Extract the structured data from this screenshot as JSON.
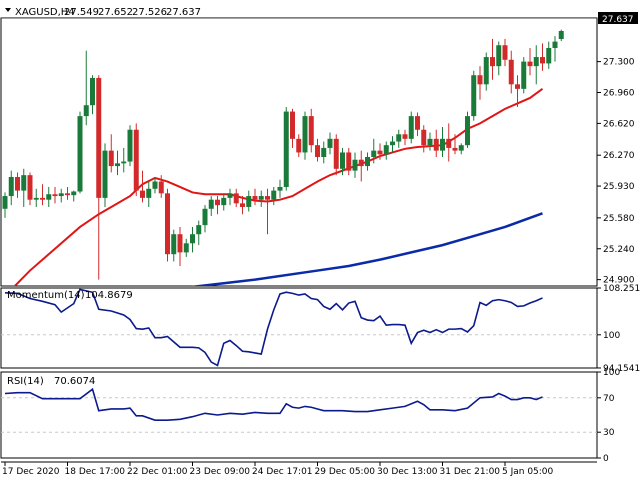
{
  "header": {
    "symbol": "XAGUSD,H4",
    "open": "27.549",
    "high": "27.652",
    "low": "27.526",
    "close": "27.637",
    "current_price_label": "27.637"
  },
  "colors": {
    "bull": "#1a7a3a",
    "bear": "#d22a2a",
    "ma_fast": "#e01515",
    "ma_slow": "#0b2aa8",
    "indicator_line": "#0b1a8c",
    "grid": "#c8c8c8",
    "axis": "#000000",
    "label_box": "#000000"
  },
  "chart_data": [
    {
      "type": "candlestick",
      "title": "XAGUSD,H4",
      "ylim": [
        24.83,
        27.78
      ],
      "y_ticks": [
        "27.637",
        "27.300",
        "26.960",
        "26.620",
        "26.270",
        "25.930",
        "25.580",
        "25.240",
        "24.900"
      ],
      "y_tick_values": [
        27.637,
        27.3,
        26.96,
        26.62,
        26.27,
        25.93,
        25.58,
        25.24,
        24.9
      ],
      "x_tick_labels": [
        "17 Dec 2020",
        "18 Dec 17:00",
        "22 Dec 01:00",
        "23 Dec 09:00",
        "24 Dec 17:01",
        "29 Dec 05:00",
        "30 Dec 13:00",
        "31 Dec 21:00",
        "5 Jan 05:00"
      ],
      "x_tick_bar_index": [
        0,
        10,
        20,
        30,
        40,
        50,
        60,
        70,
        80
      ],
      "candles": [
        [
          25.68,
          25.86,
          25.58,
          25.82
        ],
        [
          25.82,
          26.1,
          25.72,
          26.03
        ],
        [
          26.03,
          26.08,
          25.8,
          25.88
        ],
        [
          25.88,
          26.12,
          25.7,
          26.05
        ],
        [
          26.05,
          26.08,
          25.72,
          25.78
        ],
        [
          25.78,
          25.9,
          25.7,
          25.8
        ],
        [
          25.8,
          25.95,
          25.72,
          25.78
        ],
        [
          25.78,
          25.92,
          25.7,
          25.84
        ],
        [
          25.84,
          25.92,
          25.74,
          25.82
        ],
        [
          25.82,
          25.9,
          25.75,
          25.85
        ],
        [
          25.85,
          25.92,
          25.78,
          25.83
        ],
        [
          25.83,
          25.88,
          25.76,
          25.87
        ],
        [
          25.87,
          26.75,
          25.85,
          26.7
        ],
        [
          26.7,
          27.42,
          26.6,
          26.82
        ],
        [
          26.82,
          27.15,
          26.72,
          27.12
        ],
        [
          27.12,
          27.15,
          24.9,
          25.8
        ],
        [
          25.8,
          26.4,
          25.7,
          26.32
        ],
        [
          26.32,
          26.5,
          26.08,
          26.15
        ],
        [
          26.15,
          26.32,
          26.05,
          26.18
        ],
        [
          26.18,
          26.35,
          26.08,
          26.2
        ],
        [
          26.2,
          26.6,
          26.15,
          26.55
        ],
        [
          26.55,
          26.62,
          25.82,
          25.88
        ],
        [
          25.88,
          26.1,
          25.75,
          25.8
        ],
        [
          25.8,
          25.98,
          25.7,
          25.9
        ],
        [
          25.9,
          26.02,
          25.85,
          25.98
        ],
        [
          25.98,
          26.05,
          25.8,
          25.85
        ],
        [
          25.85,
          25.9,
          25.1,
          25.18
        ],
        [
          25.18,
          25.45,
          25.1,
          25.4
        ],
        [
          25.4,
          25.48,
          25.05,
          25.2
        ],
        [
          25.2,
          25.35,
          25.15,
          25.3
        ],
        [
          25.3,
          25.48,
          25.2,
          25.4
        ],
        [
          25.4,
          25.55,
          25.28,
          25.5
        ],
        [
          25.5,
          25.72,
          25.42,
          25.68
        ],
        [
          25.68,
          25.82,
          25.6,
          25.78
        ],
        [
          25.78,
          25.82,
          25.62,
          25.72
        ],
        [
          25.72,
          25.85,
          25.66,
          25.8
        ],
        [
          25.8,
          25.9,
          25.72,
          25.85
        ],
        [
          25.85,
          25.9,
          25.7,
          25.74
        ],
        [
          25.74,
          25.82,
          25.62,
          25.7
        ],
        [
          25.7,
          25.88,
          25.65,
          25.82
        ],
        [
          25.82,
          25.9,
          25.72,
          25.78
        ],
        [
          25.78,
          25.88,
          25.7,
          25.82
        ],
        [
          25.82,
          25.9,
          25.4,
          25.78
        ],
        [
          25.78,
          25.92,
          25.72,
          25.88
        ],
        [
          25.88,
          26.0,
          25.8,
          25.92
        ],
        [
          25.92,
          26.8,
          25.88,
          26.75
        ],
        [
          26.75,
          26.78,
          26.35,
          26.45
        ],
        [
          26.45,
          26.5,
          26.25,
          26.3
        ],
        [
          26.3,
          26.75,
          26.22,
          26.7
        ],
        [
          26.7,
          26.78,
          26.3,
          26.38
        ],
        [
          26.38,
          26.45,
          26.2,
          26.25
        ],
        [
          26.25,
          26.42,
          26.18,
          26.35
        ],
        [
          26.35,
          26.52,
          26.28,
          26.45
        ],
        [
          26.45,
          26.5,
          26.05,
          26.12
        ],
        [
          26.12,
          26.35,
          26.05,
          26.3
        ],
        [
          26.3,
          26.35,
          26.05,
          26.1
        ],
        [
          26.1,
          26.3,
          26.02,
          26.22
        ],
        [
          26.22,
          26.32,
          25.98,
          26.15
        ],
        [
          26.15,
          26.3,
          26.1,
          26.25
        ],
        [
          26.25,
          26.45,
          26.18,
          26.32
        ],
        [
          26.32,
          26.4,
          26.22,
          26.28
        ],
        [
          26.28,
          26.42,
          26.22,
          26.38
        ],
        [
          26.38,
          26.48,
          26.3,
          26.42
        ],
        [
          26.42,
          26.55,
          26.35,
          26.5
        ],
        [
          26.5,
          26.55,
          26.38,
          26.45
        ],
        [
          26.45,
          26.75,
          26.4,
          26.7
        ],
        [
          26.7,
          26.74,
          26.48,
          26.55
        ],
        [
          26.55,
          26.6,
          26.3,
          26.38
        ],
        [
          26.38,
          26.52,
          26.32,
          26.45
        ],
        [
          26.45,
          26.55,
          26.25,
          26.32
        ],
        [
          26.32,
          26.58,
          26.25,
          26.45
        ],
        [
          26.45,
          26.62,
          26.2,
          26.35
        ],
        [
          26.35,
          26.5,
          26.28,
          26.32
        ],
        [
          26.32,
          26.4,
          26.28,
          26.38
        ],
        [
          26.38,
          26.75,
          26.35,
          26.7
        ],
        [
          26.7,
          27.2,
          26.65,
          27.15
        ],
        [
          27.15,
          27.25,
          26.88,
          27.05
        ],
        [
          27.05,
          27.4,
          26.98,
          27.35
        ],
        [
          27.35,
          27.55,
          27.1,
          27.25
        ],
        [
          27.25,
          27.52,
          27.15,
          27.48
        ],
        [
          27.48,
          27.55,
          27.25,
          27.32
        ],
        [
          27.32,
          27.42,
          26.95,
          27.05
        ],
        [
          27.05,
          27.15,
          26.8,
          27.0
        ],
        [
          27.0,
          27.35,
          26.95,
          27.3
        ],
        [
          27.3,
          27.45,
          27.15,
          27.25
        ],
        [
          27.25,
          27.48,
          27.05,
          27.35
        ],
        [
          27.35,
          27.5,
          27.2,
          27.28
        ],
        [
          27.28,
          27.52,
          27.22,
          27.45
        ],
        [
          27.45,
          27.58,
          27.3,
          27.52
        ],
        [
          27.549,
          27.652,
          27.526,
          27.637
        ]
      ],
      "ma_fast": [
        [
          0,
          24.72
        ],
        [
          4,
          25.0
        ],
        [
          8,
          25.24
        ],
        [
          12,
          25.48
        ],
        [
          15,
          25.62
        ],
        [
          18,
          25.74
        ],
        [
          20,
          25.82
        ],
        [
          22,
          25.95
        ],
        [
          24,
          26.02
        ],
        [
          26,
          25.98
        ],
        [
          28,
          25.92
        ],
        [
          30,
          25.86
        ],
        [
          32,
          25.84
        ],
        [
          34,
          25.84
        ],
        [
          36,
          25.84
        ],
        [
          38,
          25.8
        ],
        [
          40,
          25.77
        ],
        [
          42,
          25.76
        ],
        [
          44,
          25.78
        ],
        [
          46,
          25.82
        ],
        [
          48,
          25.9
        ],
        [
          50,
          25.98
        ],
        [
          52,
          26.05
        ],
        [
          54,
          26.1
        ],
        [
          56,
          26.15
        ],
        [
          58,
          26.2
        ],
        [
          60,
          26.26
        ],
        [
          62,
          26.3
        ],
        [
          64,
          26.34
        ],
        [
          66,
          26.36
        ],
        [
          68,
          26.37
        ],
        [
          70,
          26.38
        ],
        [
          72,
          26.46
        ],
        [
          74,
          26.56
        ],
        [
          76,
          26.62
        ],
        [
          78,
          26.7
        ],
        [
          80,
          26.78
        ],
        [
          82,
          26.84
        ],
        [
          84,
          26.9
        ],
        [
          86,
          27.0
        ]
      ],
      "ma_slow": [
        [
          30,
          24.82
        ],
        [
          40,
          24.9
        ],
        [
          50,
          25.0
        ],
        [
          55,
          25.05
        ],
        [
          60,
          25.12
        ],
        [
          65,
          25.2
        ],
        [
          70,
          25.28
        ],
        [
          75,
          25.38
        ],
        [
          80,
          25.48
        ],
        [
          86,
          25.63
        ]
      ]
    },
    {
      "type": "line",
      "title": "Momentum(14) 104.8679",
      "label_name": "Momentum(14)",
      "label_value": "104.8679",
      "ylim": [
        94.15,
        108.25
      ],
      "y_ticks": [
        "108.251",
        "100",
        "94.1541"
      ],
      "y_tick_values": [
        108.251,
        100,
        94.1541
      ],
      "level_lines": [
        100
      ],
      "values": [
        [
          0,
          107.4
        ],
        [
          2,
          107.3
        ],
        [
          4,
          106.4
        ],
        [
          6,
          105.9
        ],
        [
          8,
          105.3
        ],
        [
          9,
          104.0
        ],
        [
          11,
          105.5
        ],
        [
          12,
          108.0
        ],
        [
          14,
          107.5
        ],
        [
          15,
          104.5
        ],
        [
          17,
          104.2
        ],
        [
          19,
          103.5
        ],
        [
          20,
          102.7
        ],
        [
          21,
          101.1
        ],
        [
          22,
          101.0
        ],
        [
          23,
          101.2
        ],
        [
          24,
          99.5
        ],
        [
          25,
          99.5
        ],
        [
          26,
          99.7
        ],
        [
          28,
          97.8
        ],
        [
          30,
          97.8
        ],
        [
          31,
          97.7
        ],
        [
          32,
          96.9
        ],
        [
          33,
          95.2
        ],
        [
          34,
          94.6
        ],
        [
          35,
          98.5
        ],
        [
          36,
          99.0
        ],
        [
          37,
          98.1
        ],
        [
          38,
          97.1
        ],
        [
          39,
          97.0
        ],
        [
          40,
          96.8
        ],
        [
          41,
          96.6
        ],
        [
          42,
          101.0
        ],
        [
          43,
          104.4
        ],
        [
          44,
          107.2
        ],
        [
          45,
          107.5
        ],
        [
          46,
          107.3
        ],
        [
          47,
          107.0
        ],
        [
          48,
          107.2
        ],
        [
          49,
          106.4
        ],
        [
          50,
          106.2
        ],
        [
          51,
          105.0
        ],
        [
          52,
          104.5
        ],
        [
          53,
          105.5
        ],
        [
          54,
          104.4
        ],
        [
          55,
          105.6
        ],
        [
          56,
          105.9
        ],
        [
          57,
          103.0
        ],
        [
          58,
          102.6
        ],
        [
          59,
          102.5
        ],
        [
          60,
          103.3
        ],
        [
          61,
          101.7
        ],
        [
          62,
          101.8
        ],
        [
          63,
          101.8
        ],
        [
          64,
          101.7
        ],
        [
          65,
          98.5
        ],
        [
          66,
          100.4
        ],
        [
          67,
          100.8
        ],
        [
          68,
          100.4
        ],
        [
          69,
          100.9
        ],
        [
          70,
          100.4
        ],
        [
          71,
          101.0
        ],
        [
          72,
          101.0
        ],
        [
          73,
          101.1
        ],
        [
          74,
          100.5
        ],
        [
          75,
          101.6
        ],
        [
          76,
          105.7
        ],
        [
          77,
          105.2
        ],
        [
          78,
          106.0
        ],
        [
          79,
          106.2
        ],
        [
          80,
          106.0
        ],
        [
          81,
          105.7
        ],
        [
          82,
          105.0
        ],
        [
          83,
          105.1
        ],
        [
          84,
          105.6
        ],
        [
          85,
          106.0
        ],
        [
          86,
          106.5
        ]
      ]
    },
    {
      "type": "line",
      "title": "RSI(14) 70.6074",
      "label_name": "RSI(14)",
      "label_value": "70.6074",
      "ylim": [
        0,
        100
      ],
      "y_ticks": [
        "100",
        "70",
        "30",
        "0"
      ],
      "y_tick_values": [
        100,
        70,
        30,
        0
      ],
      "level_lines": [
        70,
        30
      ],
      "values": [
        [
          0,
          75
        ],
        [
          2,
          76
        ],
        [
          4,
          76
        ],
        [
          6,
          69
        ],
        [
          8,
          69
        ],
        [
          10,
          69
        ],
        [
          12,
          69
        ],
        [
          14,
          80
        ],
        [
          15,
          55
        ],
        [
          17,
          57
        ],
        [
          19,
          57
        ],
        [
          20,
          58
        ],
        [
          21,
          49
        ],
        [
          22,
          49
        ],
        [
          24,
          44
        ],
        [
          26,
          44
        ],
        [
          28,
          45
        ],
        [
          30,
          48
        ],
        [
          32,
          52
        ],
        [
          34,
          50
        ],
        [
          36,
          52
        ],
        [
          38,
          51
        ],
        [
          40,
          53
        ],
        [
          42,
          52
        ],
        [
          44,
          52
        ],
        [
          45,
          63
        ],
        [
          46,
          59
        ],
        [
          47,
          58
        ],
        [
          48,
          60
        ],
        [
          49,
          59
        ],
        [
          50,
          57
        ],
        [
          51,
          55
        ],
        [
          52,
          55
        ],
        [
          54,
          55
        ],
        [
          56,
          54
        ],
        [
          58,
          54
        ],
        [
          60,
          56
        ],
        [
          62,
          58
        ],
        [
          64,
          60
        ],
        [
          66,
          66
        ],
        [
          67,
          62
        ],
        [
          68,
          56
        ],
        [
          70,
          56
        ],
        [
          72,
          55
        ],
        [
          74,
          58
        ],
        [
          76,
          70
        ],
        [
          78,
          71
        ],
        [
          79,
          75
        ],
        [
          80,
          72
        ],
        [
          81,
          68
        ],
        [
          82,
          68
        ],
        [
          83,
          70
        ],
        [
          84,
          70
        ],
        [
          85,
          68
        ],
        [
          86,
          71
        ]
      ]
    }
  ]
}
